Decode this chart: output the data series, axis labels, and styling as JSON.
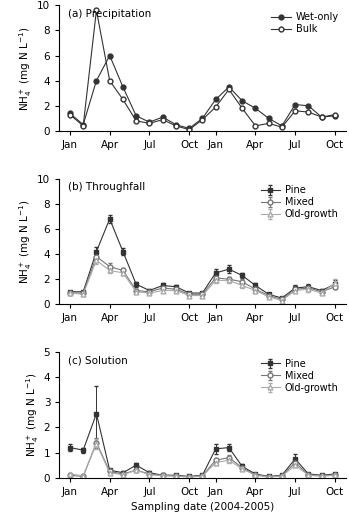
{
  "panel_a": {
    "title": "(a) Precipitation",
    "ylim": [
      0,
      10
    ],
    "yticks": [
      0,
      2,
      4,
      6,
      8,
      10
    ],
    "wet_only": [
      1.4,
      0.5,
      4.0,
      6.0,
      3.5,
      1.2,
      0.7,
      1.1,
      0.5,
      0.2,
      1.0,
      2.5,
      3.5,
      2.4,
      1.8,
      1.0,
      0.4,
      2.1,
      2.0,
      1.1,
      1.2
    ],
    "bulk": [
      1.3,
      0.4,
      9.6,
      4.0,
      2.5,
      0.8,
      0.6,
      0.9,
      0.4,
      0.1,
      0.9,
      1.9,
      3.3,
      1.8,
      0.4,
      0.6,
      0.3,
      1.6,
      1.5,
      1.1,
      1.3
    ],
    "legend_labels": [
      "Wet-only",
      "Bulk"
    ]
  },
  "panel_b": {
    "title": "(b) Throughfall",
    "ylim": [
      0,
      10
    ],
    "yticks": [
      0,
      2,
      4,
      6,
      8,
      10
    ],
    "pine_y": [
      1.0,
      1.0,
      4.2,
      6.8,
      4.2,
      1.6,
      1.1,
      1.5,
      1.4,
      0.9,
      0.9,
      2.5,
      2.8,
      2.3,
      1.5,
      0.8,
      0.5,
      1.3,
      1.4,
      1.1,
      1.6
    ],
    "pine_yerr": [
      0.1,
      0.1,
      0.4,
      0.3,
      0.3,
      0.2,
      0.1,
      0.2,
      0.1,
      0.1,
      0.1,
      0.3,
      0.3,
      0.2,
      0.2,
      0.1,
      0.1,
      0.2,
      0.2,
      0.1,
      0.3
    ],
    "mixed_y": [
      0.9,
      0.9,
      3.8,
      3.0,
      2.7,
      1.1,
      1.0,
      1.3,
      1.2,
      0.8,
      0.8,
      2.1,
      2.0,
      1.8,
      1.2,
      0.7,
      0.4,
      1.2,
      1.3,
      1.0,
      1.4
    ],
    "mixed_yerr": [
      0.1,
      0.1,
      0.3,
      0.3,
      0.2,
      0.1,
      0.1,
      0.1,
      0.1,
      0.1,
      0.1,
      0.2,
      0.2,
      0.2,
      0.2,
      0.1,
      0.1,
      0.2,
      0.2,
      0.1,
      0.2
    ],
    "old_y": [
      0.9,
      0.8,
      3.5,
      2.7,
      2.5,
      1.0,
      0.9,
      1.1,
      1.1,
      0.7,
      0.7,
      1.9,
      1.9,
      1.5,
      1.1,
      0.6,
      0.3,
      1.1,
      1.2,
      0.9,
      1.7
    ],
    "old_yerr": [
      0.1,
      0.1,
      0.3,
      0.2,
      0.2,
      0.1,
      0.1,
      0.1,
      0.1,
      0.1,
      0.1,
      0.2,
      0.2,
      0.2,
      0.1,
      0.1,
      0.1,
      0.1,
      0.2,
      0.1,
      0.3
    ],
    "legend_labels": [
      "Pine",
      "Mixed",
      "Old-growth"
    ]
  },
  "panel_c": {
    "title": "(c) Solution",
    "ylim": [
      0,
      5
    ],
    "yticks": [
      0,
      1,
      2,
      3,
      4,
      5
    ],
    "pine_y": [
      1.2,
      1.1,
      2.55,
      0.3,
      0.2,
      0.5,
      0.2,
      0.1,
      0.1,
      0.05,
      0.1,
      1.15,
      1.2,
      0.45,
      0.15,
      0.05,
      0.1,
      0.75,
      0.15,
      0.1,
      0.15
    ],
    "pine_yerr": [
      0.15,
      0.1,
      1.1,
      0.05,
      0.05,
      0.1,
      0.05,
      0.02,
      0.02,
      0.02,
      0.02,
      0.2,
      0.15,
      0.1,
      0.05,
      0.02,
      0.02,
      0.2,
      0.05,
      0.03,
      0.05
    ],
    "mixed_y": [
      0.1,
      0.05,
      1.4,
      0.25,
      0.15,
      0.3,
      0.15,
      0.1,
      0.08,
      0.04,
      0.08,
      0.7,
      0.8,
      0.4,
      0.12,
      0.04,
      0.08,
      0.6,
      0.12,
      0.08,
      0.12
    ],
    "mixed_yerr": [
      0.02,
      0.02,
      0.2,
      0.05,
      0.03,
      0.05,
      0.03,
      0.02,
      0.02,
      0.01,
      0.02,
      0.1,
      0.1,
      0.07,
      0.03,
      0.01,
      0.02,
      0.1,
      0.03,
      0.02,
      0.03
    ],
    "old_y": [
      0.15,
      0.08,
      1.35,
      0.2,
      0.12,
      0.3,
      0.12,
      0.08,
      0.06,
      0.03,
      0.06,
      0.6,
      0.7,
      0.35,
      0.1,
      0.03,
      0.06,
      0.5,
      0.1,
      0.06,
      0.1
    ],
    "old_yerr": [
      0.03,
      0.02,
      0.2,
      0.04,
      0.03,
      0.05,
      0.03,
      0.01,
      0.01,
      0.01,
      0.01,
      0.08,
      0.1,
      0.06,
      0.02,
      0.01,
      0.01,
      0.08,
      0.02,
      0.01,
      0.02
    ],
    "legend_labels": [
      "Pine",
      "Mixed",
      "Old-growth"
    ]
  },
  "n_points": 21,
  "xtick_positions": [
    0,
    3,
    6,
    9,
    11,
    14,
    17,
    20
  ],
  "xtick_labels": [
    "Jan",
    "Apr",
    "Jul",
    "Oct",
    "Jan",
    "Apr",
    "Jul",
    "Oct"
  ],
  "color_dark": "#333333",
  "color_mid": "#777777",
  "color_light": "#aaaaaa",
  "xlabel": "Sampling date (2004-2005)",
  "ylabel": "NH$_4^+$ (mg N L$^{-1}$)"
}
